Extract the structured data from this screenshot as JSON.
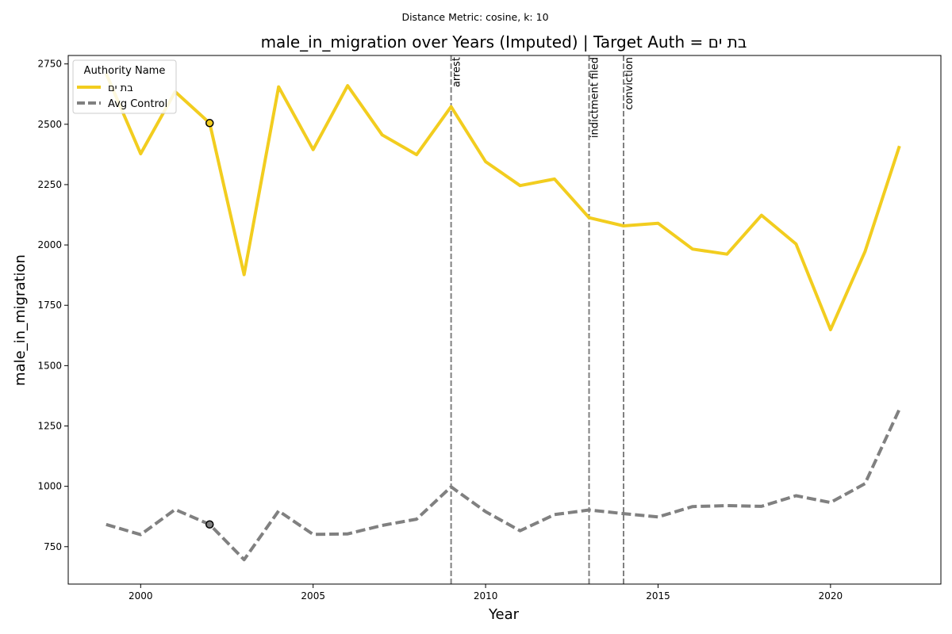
{
  "chart_data": {
    "type": "line",
    "suptitle": "Distance Metric: cosine, k: 10",
    "title": "male_in_migration over Years (Imputed) | Target Auth = בת ים",
    "xlabel": "Year",
    "ylabel": "male_in_migration",
    "xlim": [
      1997.9,
      2023.2
    ],
    "ylim": [
      595,
      2785
    ],
    "x_ticks": [
      2000,
      2005,
      2010,
      2015,
      2020
    ],
    "y_ticks": [
      750,
      1000,
      1250,
      1500,
      1750,
      2000,
      2250,
      2500,
      2750
    ],
    "x": [
      1999,
      2000,
      2001,
      2002,
      2003,
      2004,
      2005,
      2006,
      2007,
      2008,
      2009,
      2010,
      2011,
      2012,
      2013,
      2014,
      2015,
      2016,
      2017,
      2018,
      2019,
      2020,
      2021,
      2022
    ],
    "series": [
      {
        "name": "בת ים",
        "color": "#f2cd1f",
        "style": "solid",
        "values": [
          2710,
          2378,
          2635,
          2505,
          1877,
          2655,
          2395,
          2660,
          2456,
          2374,
          2573,
          2345,
          2246,
          2273,
          2113,
          2079,
          2090,
          1983,
          1962,
          2123,
          2004,
          1649,
          1972,
          2410
        ]
      },
      {
        "name": "Avg Control",
        "color": "#808080",
        "style": "dashed",
        "values": [
          842,
          800,
          904,
          842,
          696,
          898,
          801,
          803,
          838,
          864,
          998,
          895,
          816,
          883,
          902,
          887,
          873,
          916,
          920,
          917,
          961,
          933,
          1011,
          1320
        ]
      }
    ],
    "highlight_points": [
      {
        "series": 0,
        "x": 2002,
        "y": 2505
      },
      {
        "series": 1,
        "x": 2002,
        "y": 842
      }
    ],
    "events": [
      {
        "x": 2009,
        "label": "arrest"
      },
      {
        "x": 2013,
        "label": "indictment filed"
      },
      {
        "x": 2014,
        "label": "conviction"
      }
    ],
    "legend": {
      "title": "Authority Name",
      "placement": "top-left"
    },
    "grid": false
  }
}
